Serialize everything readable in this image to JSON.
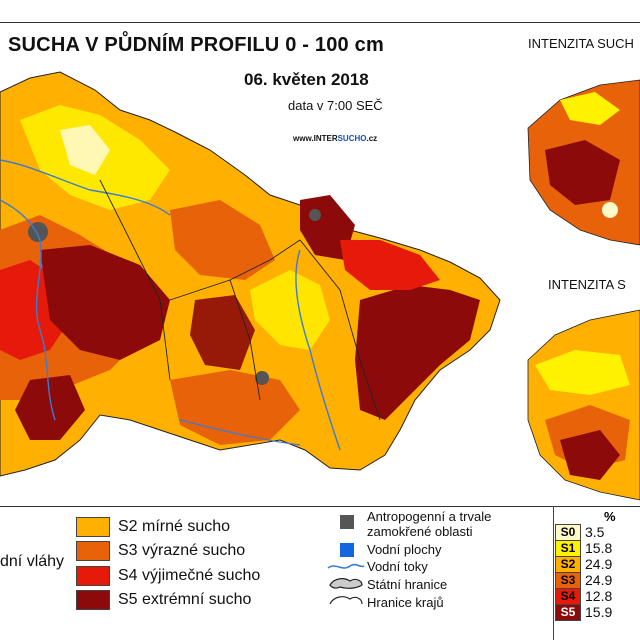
{
  "title": "SUCHA V PŮDNÍM PROFILU 0 - 100 cm",
  "date": "06. květen 2018",
  "time": "data v 7:00 SEČ",
  "site": {
    "prefix": "www.",
    "brand_a": "INTER",
    "brand_b": "SUCHO",
    "suffix": ".cz"
  },
  "insets": [
    {
      "title": "INTENZITA SUCH"
    },
    {
      "title": "INTENZITA S"
    }
  ],
  "colors": {
    "s0": "#fff8c8",
    "s1": "#fff200",
    "s2": "#ffb000",
    "s3": "#e8620a",
    "s4": "#e61a0a",
    "s5": "#8c0a0a",
    "water": "#3a7bd5",
    "anthro": "#555555"
  },
  "legend": {
    "left_partial": "dní vláhy",
    "classes": [
      {
        "code": "S2",
        "label": "S2 mírné sucho",
        "color": "#ffb000"
      },
      {
        "code": "S3",
        "label": "S3 výrazné sucho",
        "color": "#e8620a"
      },
      {
        "code": "S4",
        "label": "S4 výjimečné sucho",
        "color": "#e61a0a"
      },
      {
        "code": "S5",
        "label": "S5 extrémní sucho",
        "color": "#8c0a0a"
      }
    ],
    "other": [
      {
        "icon": "anthropogenic-area-icon",
        "label_1": "Antropogenní a trvale",
        "label_2": "zamokřené oblasti"
      },
      {
        "icon": "water-area-icon",
        "label_1": "Vodní plochy"
      },
      {
        "icon": "river-icon",
        "label_1": "Vodní toky"
      },
      {
        "icon": "state-border-icon",
        "label_1": "Státní hranice"
      },
      {
        "icon": "region-border-icon",
        "label_1": "Hranice krajů"
      }
    ],
    "pct_header": "%",
    "percentages": [
      {
        "cls": "S0",
        "value": "3.5",
        "color": "#fff8c8",
        "text": "#111"
      },
      {
        "cls": "S1",
        "value": "15.8",
        "color": "#fff200",
        "text": "#111"
      },
      {
        "cls": "S2",
        "value": "24.9",
        "color": "#ffb000",
        "text": "#111"
      },
      {
        "cls": "S3",
        "value": "24.9",
        "color": "#e8620a",
        "text": "#111"
      },
      {
        "cls": "S4",
        "value": "12.8",
        "color": "#e61a0a",
        "text": "#111"
      },
      {
        "cls": "S5",
        "value": "15.9",
        "color": "#8c0a0a",
        "text": "#fff"
      }
    ]
  }
}
